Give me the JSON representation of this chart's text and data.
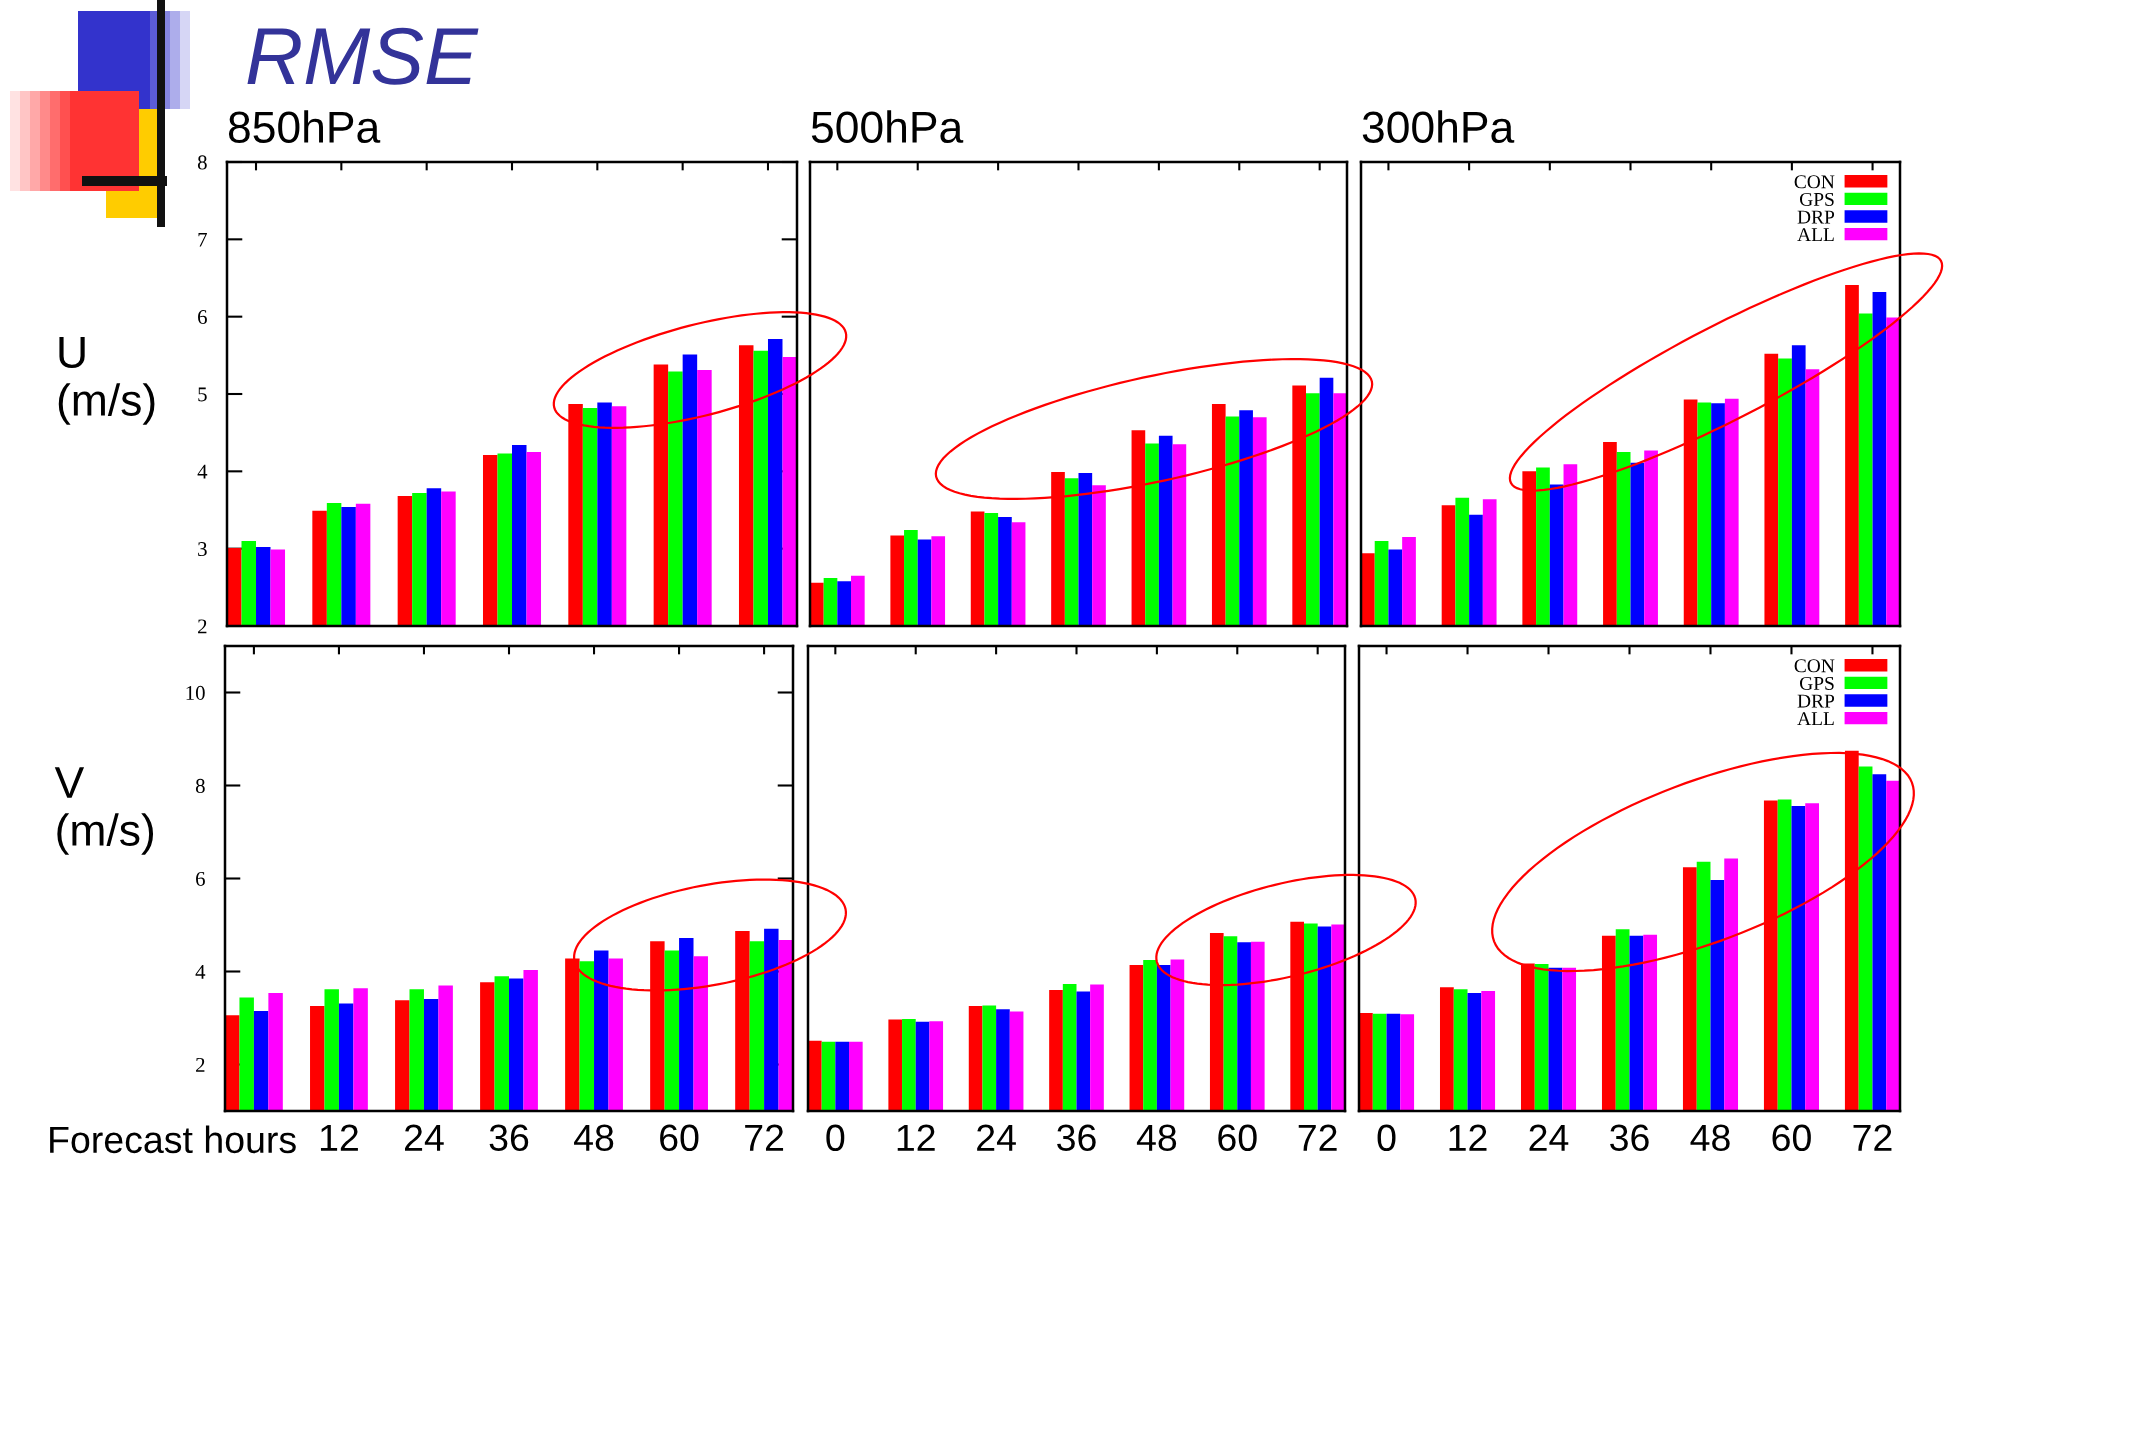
{
  "chart_data": [
    {
      "type": "bar",
      "title": "850hPa",
      "ylabel": "U\n(m/s)",
      "annotations": [
        "RMSE"
      ],
      "categories": [
        null,
        "12",
        "24",
        "36",
        "48",
        "60",
        "72"
      ],
      "series": [
        {
          "color": "#ff0000",
          "values": [
            3.01,
            3.49,
            3.68,
            4.21,
            4.87,
            5.38,
            5.63
          ]
        },
        {
          "color": "#00ff00",
          "values": [
            3.1,
            3.59,
            3.72,
            4.23,
            4.82,
            5.29,
            5.56
          ]
        },
        {
          "color": "#0000ff",
          "values": [
            3.02,
            3.54,
            3.78,
            4.34,
            4.89,
            5.51,
            5.71
          ]
        },
        {
          "color": "#ff00ff",
          "values": [
            2.99,
            3.58,
            3.74,
            4.25,
            4.84,
            5.31,
            5.48
          ]
        }
      ],
      "ylim": [
        2,
        8
      ],
      "yticks": [
        2,
        3,
        4,
        5,
        6,
        7,
        8
      ],
      "tick_labels": "y"
    },
    {
      "type": "bar",
      "title": "500hPa",
      "categories": [
        "0",
        "12",
        "24",
        "36",
        "48",
        "60",
        "72"
      ],
      "series": [
        {
          "color": "#ff0000",
          "values": [
            2.56,
            3.17,
            3.48,
            3.99,
            4.53,
            4.87,
            5.11
          ]
        },
        {
          "color": "#00ff00",
          "values": [
            2.62,
            3.24,
            3.46,
            3.91,
            4.36,
            4.71,
            5.01
          ]
        },
        {
          "color": "#0000ff",
          "values": [
            2.58,
            3.12,
            3.41,
            3.98,
            4.46,
            4.79,
            5.21
          ]
        },
        {
          "color": "#ff00ff",
          "values": [
            2.65,
            3.16,
            3.34,
            3.82,
            4.35,
            4.7,
            5.01
          ]
        }
      ],
      "ylim": [
        2,
        8
      ],
      "tick_labels": false
    },
    {
      "type": "bar",
      "title": "300hPa",
      "categories": [
        "0",
        "12",
        "24",
        "36",
        "48",
        "60",
        "72"
      ],
      "series": [
        {
          "name": "CON",
          "color": "#ff0000",
          "values": [
            2.94,
            3.56,
            4.0,
            4.38,
            4.93,
            5.52,
            6.41
          ]
        },
        {
          "name": "GPS",
          "color": "#00ff00",
          "values": [
            3.1,
            3.66,
            4.05,
            4.25,
            4.89,
            5.46,
            6.04
          ]
        },
        {
          "name": "DRP",
          "color": "#0000ff",
          "values": [
            2.99,
            3.44,
            3.83,
            4.11,
            4.88,
            5.63,
            6.32
          ]
        },
        {
          "name": "ALL",
          "color": "#ff00ff",
          "values": [
            3.15,
            3.64,
            4.09,
            4.27,
            4.94,
            5.32,
            5.99
          ]
        }
      ],
      "ylim": [
        2,
        8
      ],
      "tick_labels": false,
      "legend": "top right"
    },
    {
      "type": "bar",
      "ylabel": "V\n(m/s)",
      "xlabel": "Forecast hours",
      "categories": [
        null,
        "12",
        "24",
        "36",
        "48",
        "60",
        "72"
      ],
      "series": [
        {
          "color": "#ff0000",
          "values": [
            3.06,
            3.26,
            3.38,
            3.77,
            4.28,
            4.65,
            4.87
          ]
        },
        {
          "color": "#00ff00",
          "values": [
            3.44,
            3.62,
            3.62,
            3.9,
            4.22,
            4.45,
            4.65
          ]
        },
        {
          "color": "#0000ff",
          "values": [
            3.15,
            3.31,
            3.41,
            3.85,
            4.45,
            4.72,
            4.92
          ]
        },
        {
          "color": "#ff00ff",
          "values": [
            3.54,
            3.64,
            3.7,
            4.03,
            4.28,
            4.33,
            4.68
          ]
        }
      ],
      "ylim": [
        1,
        11
      ],
      "yticks": [
        2,
        4,
        6,
        8,
        10
      ]
    },
    {
      "type": "bar",
      "categories": [
        "0",
        "12",
        "24",
        "36",
        "48",
        "60",
        "72"
      ],
      "series": [
        {
          "color": "#ff0000",
          "values": [
            2.51,
            2.97,
            3.26,
            3.6,
            4.14,
            4.83,
            5.07
          ]
        },
        {
          "color": "#00ff00",
          "values": [
            2.49,
            2.98,
            3.27,
            3.73,
            4.25,
            4.76,
            5.03
          ]
        },
        {
          "color": "#0000ff",
          "values": [
            2.49,
            2.92,
            3.19,
            3.57,
            4.14,
            4.63,
            4.97
          ]
        },
        {
          "color": "#ff00ff",
          "values": [
            2.49,
            2.93,
            3.14,
            3.72,
            4.26,
            4.64,
            5.01
          ]
        }
      ],
      "ylim": [
        1,
        11
      ],
      "tick_labels": "x"
    },
    {
      "type": "bar",
      "categories": [
        "0",
        "12",
        "24",
        "36",
        "48",
        "60",
        "72"
      ],
      "series": [
        {
          "name": "CON",
          "color": "#ff0000",
          "values": [
            3.11,
            3.66,
            4.17,
            4.77,
            6.24,
            7.68,
            8.75
          ]
        },
        {
          "name": "GPS",
          "color": "#00ff00",
          "values": [
            3.09,
            3.62,
            4.16,
            4.91,
            6.36,
            7.7,
            8.41
          ]
        },
        {
          "name": "DRP",
          "color": "#0000ff",
          "values": [
            3.09,
            3.54,
            4.08,
            4.77,
            5.97,
            7.56,
            8.24
          ]
        },
        {
          "name": "ALL",
          "color": "#ff00ff",
          "values": [
            3.08,
            3.58,
            4.08,
            4.79,
            6.43,
            7.62,
            8.1
          ]
        }
      ],
      "ylim": [
        1,
        11
      ],
      "tick_labels": "x",
      "legend": "top right"
    }
  ]
}
